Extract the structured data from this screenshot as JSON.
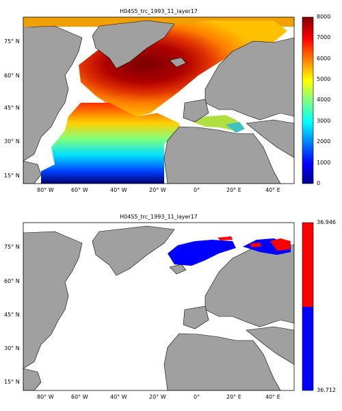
{
  "panels": [
    {
      "title": "H04S5_trc_1993_11_layer17",
      "colorbar": {
        "type": "continuous",
        "ticks": [
          "0",
          "1000",
          "2000",
          "3000",
          "4000",
          "5000",
          "6000",
          "7000",
          "8000"
        ],
        "range": [
          0,
          8000
        ]
      },
      "map": {
        "lat_ticks": [
          "75° N",
          "60° N",
          "45° N",
          "30° N",
          "15° N"
        ],
        "lon_ticks": [
          "80° W",
          "60° W",
          "40° W",
          "20° W",
          "0°",
          "20° E",
          "40° E"
        ],
        "lon_range": [
          -90,
          50
        ],
        "lat_range": [
          10,
          85
        ]
      }
    },
    {
      "title": "H04S5_trc_1993_11_layer17",
      "colorbar": {
        "type": "two-class",
        "ticks": [
          "36.946",
          "36.712"
        ],
        "colors": [
          "#ff0000",
          "#0000ff"
        ]
      },
      "map": {
        "lat_ticks": [
          "75° N",
          "60° N",
          "45° N",
          "30° N",
          "15° N"
        ],
        "lon_ticks": [
          "80° W",
          "60° W",
          "40° W",
          "20° W",
          "0°",
          "20° E",
          "40° E"
        ],
        "lon_range": [
          -90,
          50
        ],
        "lat_range": [
          10,
          85
        ]
      }
    }
  ],
  "colors": {
    "land": "#a0a0a0",
    "ocean_missing": "#ffffff"
  }
}
